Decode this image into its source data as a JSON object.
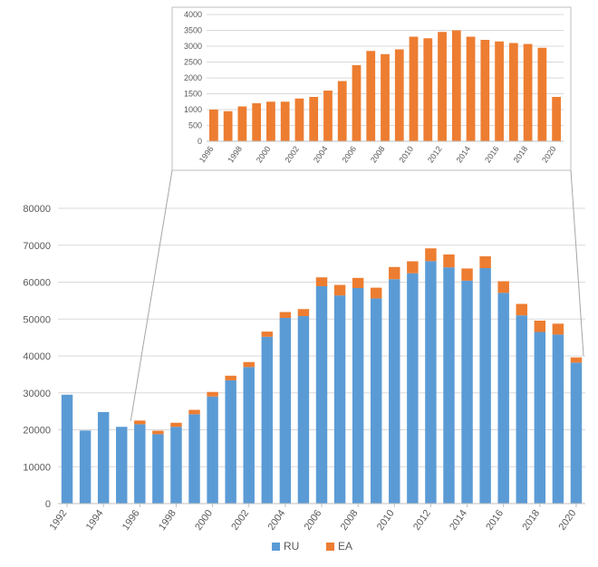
{
  "main_chart": {
    "type": "stacked-bar",
    "years": [
      1992,
      1993,
      1994,
      1995,
      1996,
      1997,
      1998,
      1999,
      2000,
      2001,
      2002,
      2003,
      2004,
      2005,
      2006,
      2007,
      2008,
      2009,
      2010,
      2011,
      2012,
      2013,
      2014,
      2015,
      2016,
      2017,
      2018,
      2019,
      2020
    ],
    "series": {
      "RU": {
        "color": "#5b9bd5",
        "values": [
          29500,
          19800,
          24800,
          20800,
          21500,
          18800,
          20800,
          24200,
          29000,
          33400,
          37000,
          45200,
          50300,
          50800,
          58900,
          56400,
          58400,
          55600,
          60800,
          62400,
          65700,
          64000,
          60400,
          63800,
          57100,
          51000,
          46500,
          45800,
          38200
        ]
      },
      "EA": {
        "color": "#ed7d31",
        "values": [
          0,
          0,
          0,
          0,
          1000,
          950,
          1100,
          1200,
          1250,
          1250,
          1350,
          1400,
          1600,
          1900,
          2400,
          2850,
          2750,
          2900,
          3300,
          3250,
          3450,
          3500,
          3300,
          3200,
          3150,
          3100,
          3070,
          2950,
          1400
        ]
      }
    },
    "ylim": [
      0,
      80000
    ],
    "ytick_step": 10000,
    "xtick_step": 2,
    "background_color": "#ffffff",
    "plot_bg_color": "#ffffff",
    "grid_color": "#d9d9d9",
    "axis_line_color": "#bfbfbf",
    "label_color": "#595959",
    "label_fontsize": 11,
    "bar_width": 0.62
  },
  "inset_chart": {
    "type": "bar",
    "years": [
      1996,
      1997,
      1998,
      1999,
      2000,
      2001,
      2002,
      2003,
      2004,
      2005,
      2006,
      2007,
      2008,
      2009,
      2010,
      2011,
      2012,
      2013,
      2014,
      2015,
      2016,
      2017,
      2018,
      2019,
      2020
    ],
    "values": [
      1000,
      950,
      1100,
      1200,
      1250,
      1250,
      1350,
      1400,
      1600,
      1900,
      2400,
      2850,
      2750,
      2900,
      3300,
      3250,
      3450,
      3500,
      3300,
      3200,
      3150,
      3100,
      3070,
      2950,
      1400
    ],
    "bar_color": "#ed7d31",
    "ylim": [
      0,
      4000
    ],
    "ytick_step": 500,
    "xtick_step": 2,
    "background_color": "#ffffff",
    "border_color": "#bfbfbf",
    "grid_color": "#d9d9d9",
    "label_color": "#595959",
    "label_fontsize": 9,
    "bar_width": 0.62
  },
  "legend": {
    "items": [
      {
        "label": "RU",
        "color": "#5b9bd5"
      },
      {
        "label": "EA",
        "color": "#ed7d31"
      }
    ],
    "fontsize": 12,
    "text_color": "#595959"
  },
  "callout": {
    "line_color": "#a6a6a6",
    "line_width": 1
  }
}
